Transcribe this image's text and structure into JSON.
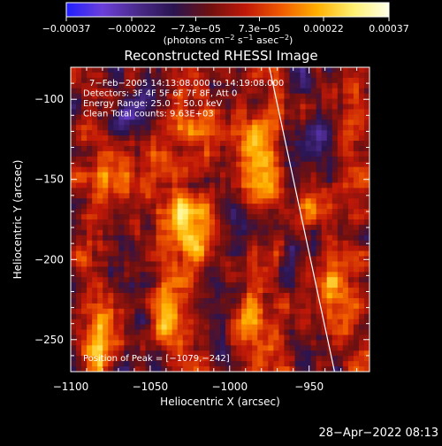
{
  "chart_data": {
    "type": "heatmap",
    "title": "Reconstructed RHESSI Image",
    "xlabel": "Heliocentric X (arcsec)",
    "ylabel": "Heliocentric Y (arcsec)",
    "xlim": [
      -1100,
      -912
    ],
    "ylim": [
      -270,
      -80
    ],
    "xticks": [
      {
        "value": -1100,
        "label": "−1100"
      },
      {
        "value": -1050,
        "label": "−1050"
      },
      {
        "value": -1000,
        "label": "−1000"
      },
      {
        "value": -950,
        "label": "−950"
      }
    ],
    "yticks": [
      {
        "value": -100,
        "label": "−100"
      },
      {
        "value": -150,
        "label": "−150"
      },
      {
        "value": -200,
        "label": "−200"
      },
      {
        "value": -250,
        "label": "−250"
      }
    ],
    "colorbar": {
      "range": [
        -0.00037,
        0.00037
      ],
      "ticks": [
        {
          "value": -0.00037,
          "label": "−0.00037"
        },
        {
          "value": -0.00022,
          "label": "−0.00022"
        },
        {
          "value": -7.3e-05,
          "label": "−7.3e−05"
        },
        {
          "value": 7.3e-05,
          "label": "7.3e−05"
        },
        {
          "value": 0.00022,
          "label": "0.00022"
        },
        {
          "value": 0.00037,
          "label": "0.00037"
        }
      ],
      "units_text": "(photons cm",
      "units_exp1": "−2",
      "units_mid": " s",
      "units_exp2": "−1",
      "units_end": " asec",
      "units_exp3": "−2",
      "units_close": ")",
      "stops": [
        "#1f1fff",
        "#6b3fd9",
        "#4a2a8a",
        "#2a1450",
        "#6e1010",
        "#c01808",
        "#f05a00",
        "#ffb000",
        "#fff070",
        "#ffffe8"
      ]
    },
    "annotations": [
      "7−Feb−2005 14:13:08.000 to 14:19:08.000",
      "Detectors: 3F 4F 5F 6F 7F 8F, Att 0",
      "Energy Range: 25.0 − 50.0 keV",
      "Clean      Total counts: 9.63E+03"
    ],
    "peak_label": "Position of Peak = [−1079,−242]",
    "peak": {
      "x": -1079,
      "y": -242
    },
    "limb_line": [
      {
        "x": -975,
        "y": -80
      },
      {
        "x": -934,
        "y": -270
      }
    ],
    "grid": false
  },
  "footer": {
    "timestamp": "28−Apr−2022 08:13"
  }
}
